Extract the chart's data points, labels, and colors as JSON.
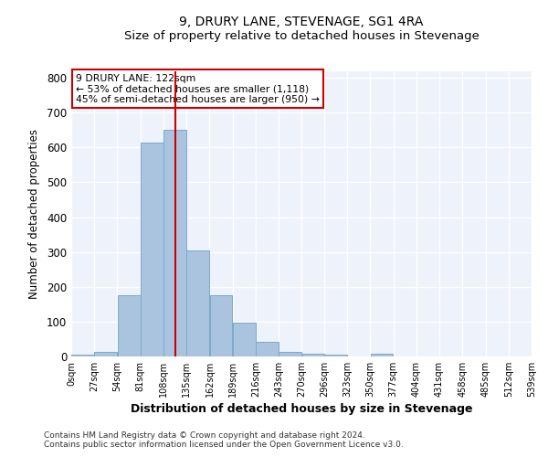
{
  "title": "9, DRURY LANE, STEVENAGE, SG1 4RA",
  "subtitle": "Size of property relative to detached houses in Stevenage",
  "xlabel": "Distribution of detached houses by size in Stevenage",
  "ylabel": "Number of detached properties",
  "property_size": 122,
  "annotation_line1": "9 DRURY LANE: 122sqm",
  "annotation_line2": "← 53% of detached houses are smaller (1,118)",
  "annotation_line3": "45% of semi-detached houses are larger (950) →",
  "bar_color": "#aac4e0",
  "bar_edge_color": "#7aaac8",
  "vline_color": "#cc0000",
  "bin_edges": [
    0,
    27,
    54,
    81,
    108,
    135,
    162,
    189,
    216,
    243,
    270,
    296,
    323,
    350,
    377,
    404,
    431,
    458,
    485,
    512,
    539
  ],
  "bar_heights": [
    5,
    12,
    175,
    615,
    650,
    305,
    175,
    98,
    42,
    13,
    7,
    5,
    0,
    7,
    0,
    0,
    0,
    0,
    0,
    0
  ],
  "ylim": [
    0,
    820
  ],
  "xlim": [
    0,
    539
  ],
  "footnote1": "Contains HM Land Registry data © Crown copyright and database right 2024.",
  "footnote2": "Contains public sector information licensed under the Open Government Licence v3.0.",
  "background_color": "#eef2fb",
  "grid_color": "#ffffff",
  "title_fontsize": 10,
  "subtitle_fontsize": 9.5
}
